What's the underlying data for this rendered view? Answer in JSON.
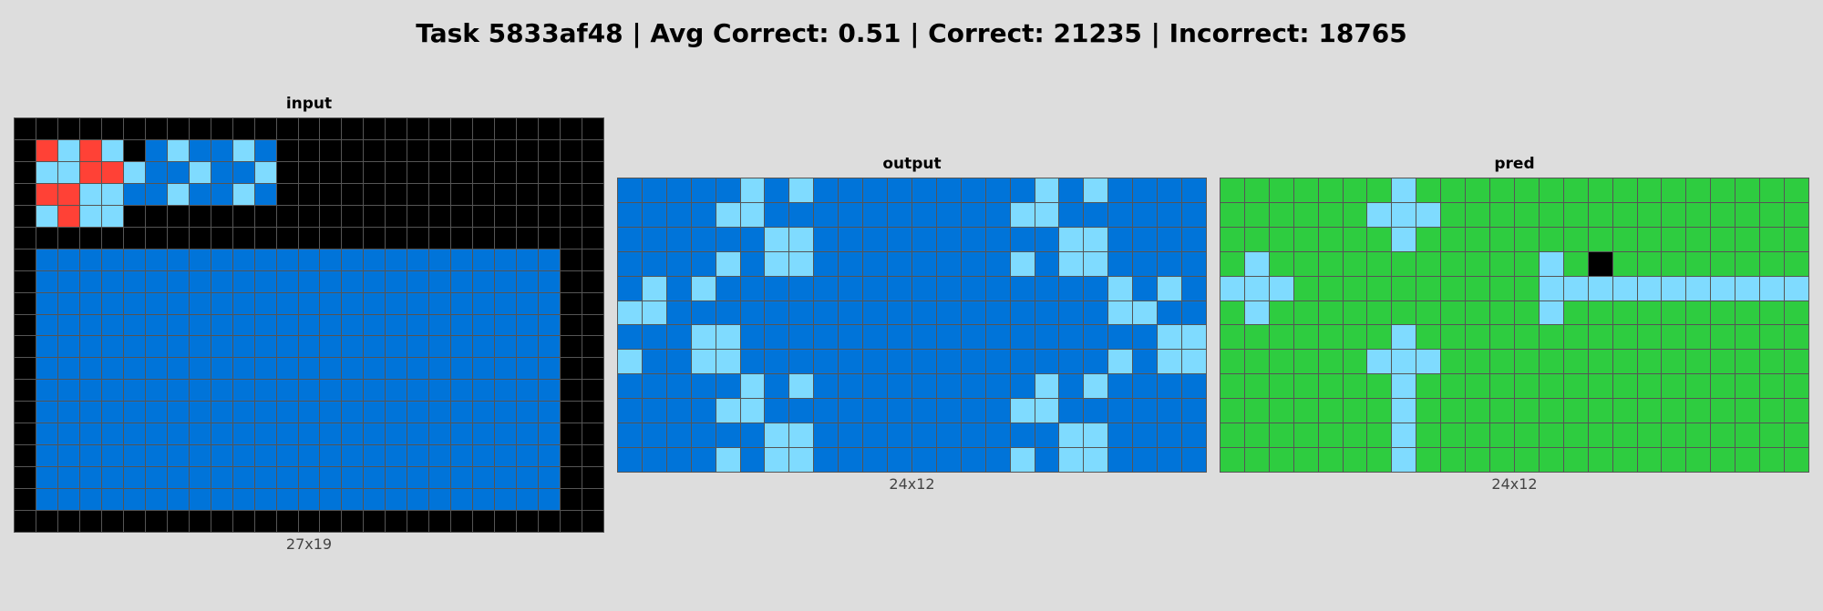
{
  "title": "Task 5833af48 | Avg Correct: 0.51 | Correct: 21235 | Incorrect: 18765",
  "palette": {
    "0": "#000000",
    "1": "#0074d9",
    "2": "#2ecc40",
    "3": "#ff4136",
    "4": "#7fdbff"
  },
  "panels": [
    {
      "key": "input",
      "label": "input",
      "dims": "27x19",
      "rows": [
        "000000000000000000000000000",
        "034340141141000000000000000",
        "044334114114000000000000000",
        "033441141141000000000000000",
        "043440000000000000000000000",
        "000000000000000000000000000",
        "011111111111111111111111100",
        "011111111111111111111111100",
        "011111111111111111111111100",
        "011111111111111111111111100",
        "011111111111111111111111100",
        "011111111111111111111111100",
        "011111111111111111111111100",
        "011111111111111111111111100",
        "011111111111111111111111100",
        "011111111111111111111111100",
        "011111111111111111111111100",
        "011111111111111111111111100",
        "000000000000000000000000000"
      ]
    },
    {
      "key": "output",
      "label": "output",
      "dims": "24x12",
      "rows": [
        "111114141111111114141111",
        "111144111111111144111111",
        "111111441111111111441111",
        "111141441111111141441111",
        "141411111111111111114141",
        "441111111111111111114411",
        "111441111111111111111144",
        "411441111111111111114144",
        "111114141111111114141111",
        "111144111111111144111111",
        "111111441111111111441111",
        "111141441111111141441111"
      ]
    },
    {
      "key": "pred",
      "label": "pred",
      "dims": "24x12",
      "rows": [
        "222222242222222222222222",
        "222222444222222222222222",
        "222222242222222222222222",
        "242222222222242022222222",
        "444222222222244444444444",
        "242222222222242222222222",
        "222222242222222222222222",
        "222222444222222222222222",
        "222222242222222222222222",
        "222222242222222222222222",
        "222222242222222222222222",
        "222222242222222222222222"
      ]
    }
  ]
}
